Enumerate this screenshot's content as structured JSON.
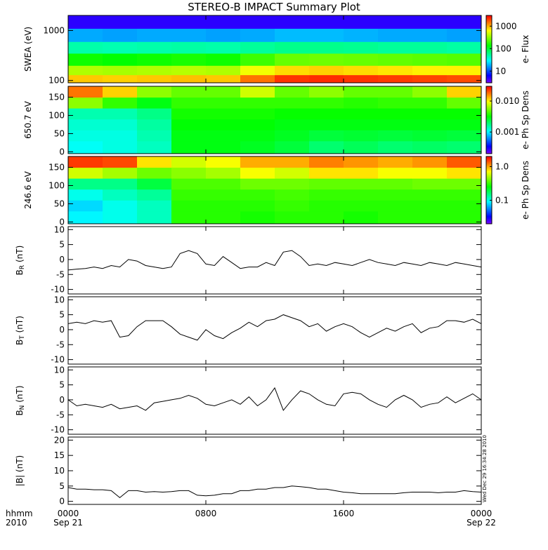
{
  "title": "STEREO-B IMPACT Summary Plot",
  "side_note": "Wed Dec 29 16:34:28 2010",
  "x_axis": {
    "xlim": [
      0,
      24
    ],
    "xticks": [
      {
        "value": 0,
        "label": "0000"
      },
      {
        "value": 8,
        "label": "0800"
      },
      {
        "value": 16,
        "label": "1600"
      },
      {
        "value": 24,
        "label": "0000"
      }
    ],
    "dates": [
      "Sep 21",
      null,
      null,
      "Sep 22"
    ],
    "left_labels": [
      "hhmm",
      "2010"
    ],
    "x": [
      0,
      0.5,
      1,
      1.5,
      2,
      2.5,
      3,
      3.5,
      4,
      4.5,
      5,
      5.5,
      6,
      6.5,
      7,
      7.5,
      8,
      8.5,
      9,
      9.5,
      10,
      10.5,
      11,
      11.5,
      12,
      12.5,
      13,
      13.5,
      14,
      14.5,
      15,
      15.5,
      16,
      16.5,
      17,
      17.5,
      18,
      18.5,
      19,
      19.5,
      20,
      20.5,
      21,
      21.5,
      22,
      22.5,
      23,
      23.5,
      24
    ]
  },
  "chart_data": [
    {
      "type": "heatmap",
      "ylabel": "SWEA (eV)",
      "ylim": [
        90,
        2000
      ],
      "yticks": [
        100,
        1000
      ],
      "log_y": true,
      "x_edges": [
        0,
        2,
        4,
        6,
        8,
        10,
        12,
        14,
        16,
        18,
        20,
        22,
        24
      ],
      "y_edges": [
        90,
        130,
        200,
        350,
        600,
        1100,
        2000
      ],
      "z": [
        [
          900,
          850,
          900,
          950,
          900,
          1500,
          2200,
          2300,
          2200,
          2100,
          2000,
          1900
        ],
        [
          400,
          380,
          400,
          420,
          400,
          600,
          800,
          850,
          800,
          750,
          700,
          700
        ],
        [
          150,
          140,
          150,
          160,
          150,
          200,
          260,
          270,
          260,
          250,
          240,
          230
        ],
        [
          50,
          48,
          50,
          52,
          50,
          55,
          60,
          60,
          58,
          55,
          55,
          52
        ],
        [
          18,
          17,
          18,
          18,
          17,
          18,
          20,
          20,
          19,
          18,
          18,
          17
        ],
        [
          5,
          5,
          5,
          5,
          5,
          5,
          5,
          5,
          5,
          5,
          5,
          5
        ]
      ],
      "colormap": "rainbow",
      "log_color": true,
      "clim": [
        3,
        3000
      ],
      "cticks": [
        10,
        100,
        1000
      ],
      "clabel": "e- Flux"
    },
    {
      "type": "heatmap",
      "ylabel": "650.7 eV",
      "ylim": [
        -5,
        180
      ],
      "yticks": [
        0,
        50,
        100,
        150
      ],
      "log_y": false,
      "x_edges": [
        0,
        2,
        4,
        6,
        8,
        10,
        12,
        14,
        16,
        18,
        20,
        22,
        24
      ],
      "y_edges": [
        -5,
        30,
        60,
        90,
        120,
        150,
        180
      ],
      "z": [
        [
          0.0011,
          0.0012,
          0.0014,
          0.003,
          0.003,
          0.0028,
          0.0025,
          0.002,
          0.0022,
          0.002,
          0.0021,
          0.002
        ],
        [
          0.0012,
          0.0012,
          0.0015,
          0.003,
          0.003,
          0.003,
          0.0028,
          0.0025,
          0.0026,
          0.0025,
          0.0026,
          0.0025
        ],
        [
          0.0013,
          0.0013,
          0.0016,
          0.0032,
          0.0032,
          0.0032,
          0.003,
          0.003,
          0.003,
          0.003,
          0.003,
          0.003
        ],
        [
          0.0015,
          0.0015,
          0.0018,
          0.0035,
          0.0035,
          0.0035,
          0.0033,
          0.0033,
          0.0033,
          0.0033,
          0.0033,
          0.0033
        ],
        [
          0.006,
          0.004,
          0.003,
          0.004,
          0.004,
          0.004,
          0.004,
          0.004,
          0.0038,
          0.004,
          0.004,
          0.005
        ],
        [
          0.018,
          0.012,
          0.006,
          0.005,
          0.005,
          0.008,
          0.005,
          0.006,
          0.005,
          0.005,
          0.006,
          0.012
        ]
      ],
      "colormap": "rainbow",
      "log_color": true,
      "clim": [
        0.0002,
        0.03
      ],
      "cticks": [
        0.001,
        {
          "value": 0.01,
          "label": "0.010"
        }
      ],
      "clabel": "e- Ph Sp Dens"
    },
    {
      "type": "heatmap",
      "ylabel": "246.6 eV",
      "ylim": [
        -5,
        180
      ],
      "yticks": [
        0,
        50,
        100,
        150
      ],
      "log_y": false,
      "x_edges": [
        0,
        2,
        4,
        6,
        8,
        10,
        12,
        14,
        16,
        18,
        20,
        22,
        24
      ],
      "y_edges": [
        -5,
        30,
        60,
        90,
        120,
        150,
        180
      ],
      "z": [
        [
          0.09,
          0.1,
          0.12,
          0.3,
          0.3,
          0.28,
          0.3,
          0.3,
          0.28,
          0.3,
          0.3,
          0.3
        ],
        [
          0.08,
          0.1,
          0.12,
          0.3,
          0.3,
          0.3,
          0.32,
          0.3,
          0.3,
          0.3,
          0.3,
          0.3
        ],
        [
          0.1,
          0.12,
          0.14,
          0.32,
          0.32,
          0.32,
          0.34,
          0.32,
          0.32,
          0.32,
          0.32,
          0.32
        ],
        [
          0.15,
          0.15,
          0.2,
          0.35,
          0.35,
          0.4,
          0.4,
          0.38,
          0.38,
          0.38,
          0.4,
          0.4
        ],
        [
          0.6,
          0.5,
          0.4,
          0.45,
          0.5,
          0.7,
          0.6,
          0.8,
          0.8,
          0.7,
          0.7,
          0.8
        ],
        [
          1.6,
          1.5,
          0.8,
          0.6,
          0.7,
          1.0,
          1.0,
          1.2,
          1.1,
          1.0,
          1.1,
          1.4
        ]
      ],
      "colormap": "rainbow",
      "log_color": true,
      "clim": [
        0.02,
        2
      ],
      "cticks": [
        0.1,
        {
          "value": 1,
          "label": "1.0"
        }
      ],
      "clabel": "e- Ph Sp Dens"
    },
    {
      "type": "line",
      "ylabel": [
        "B",
        "R",
        " (nT)"
      ],
      "ylim": [
        -11.5,
        11
      ],
      "yticks": [
        -10,
        -5,
        0,
        5,
        10
      ],
      "color": "#000000",
      "values": [
        -3.5,
        -3.2,
        -3,
        -2.5,
        -3,
        -2,
        -2.5,
        0,
        -0.5,
        -2,
        -2.5,
        -3,
        -2.5,
        2,
        3,
        2,
        -1.5,
        -2,
        1,
        -1,
        -3,
        -2.5,
        -2.5,
        -1,
        -2,
        2.5,
        3,
        1,
        -2,
        -1.5,
        -2,
        -1,
        -1.5,
        -2,
        -1,
        0,
        -1,
        -1.5,
        -2,
        -1,
        -1.5,
        -2,
        -1,
        -1.5,
        -2,
        -1,
        -1.5,
        -2,
        -2.5
      ]
    },
    {
      "type": "line",
      "ylabel": [
        "B",
        "T",
        " (nT)"
      ],
      "ylim": [
        -11.5,
        11
      ],
      "yticks": [
        -10,
        -5,
        0,
        5,
        10
      ],
      "color": "#000000",
      "values": [
        2,
        2.5,
        2,
        3,
        2.5,
        3,
        -2.5,
        -2,
        1,
        3,
        3,
        3,
        1,
        -1.5,
        -2.5,
        -3.5,
        0,
        -2,
        -3,
        -1,
        0.5,
        2.5,
        1,
        3,
        3.5,
        5,
        4,
        3,
        1,
        2,
        -0.5,
        1,
        2,
        1,
        -1,
        -2.5,
        -1,
        0.5,
        -0.5,
        1,
        2,
        -1,
        0.5,
        1,
        3,
        3,
        2.5,
        3.5,
        2
      ]
    },
    {
      "type": "line",
      "ylabel": [
        "B",
        "N",
        " (nT)"
      ],
      "ylim": [
        -11.5,
        11
      ],
      "yticks": [
        -10,
        -5,
        0,
        5,
        10
      ],
      "color": "#000000",
      "values": [
        0,
        -2,
        -1.5,
        -2,
        -2.5,
        -1.5,
        -3,
        -2.5,
        -2,
        -3.5,
        -1,
        -0.5,
        0,
        0.5,
        1.5,
        0.5,
        -1.5,
        -2,
        -1,
        0,
        -1.5,
        1,
        -2,
        0,
        4,
        -3.5,
        0,
        3,
        2,
        0,
        -1.5,
        -2,
        2,
        2.5,
        2,
        0,
        -1.5,
        -2.5,
        0,
        1.5,
        0,
        -2.5,
        -1.5,
        -1,
        1,
        -1,
        0.5,
        2,
        0
      ]
    },
    {
      "type": "line",
      "ylabel": "|B| (nT)",
      "ylim": [
        -1,
        21
      ],
      "yticks": [
        0,
        5,
        10,
        15,
        20
      ],
      "color": "#000000",
      "values": [
        4.5,
        4,
        4,
        3.8,
        3.8,
        3.5,
        1.2,
        3.5,
        3.5,
        3,
        3.2,
        3,
        3.2,
        3.5,
        3.5,
        2,
        1.8,
        2,
        2.5,
        2.5,
        3.5,
        3.5,
        4,
        4,
        4.5,
        4.5,
        5,
        4.8,
        4.5,
        4,
        4,
        3.5,
        3,
        2.8,
        2.5,
        2.5,
        2.5,
        2.5,
        2.5,
        2.8,
        3,
        3,
        3,
        2.8,
        3,
        3,
        3.5,
        3.2,
        3
      ]
    }
  ]
}
